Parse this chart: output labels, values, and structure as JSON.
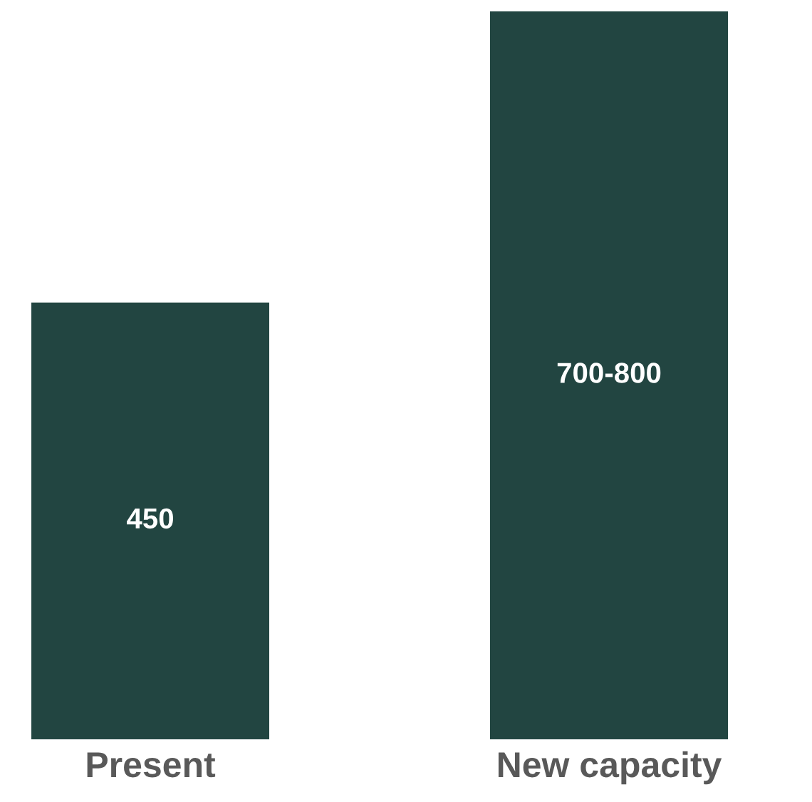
{
  "chart_data": {
    "type": "bar",
    "categories": [
      "Present",
      "New capacity"
    ],
    "values": [
      450,
      750
    ],
    "value_labels": [
      "450",
      "700-800"
    ],
    "color": "#224541"
  }
}
